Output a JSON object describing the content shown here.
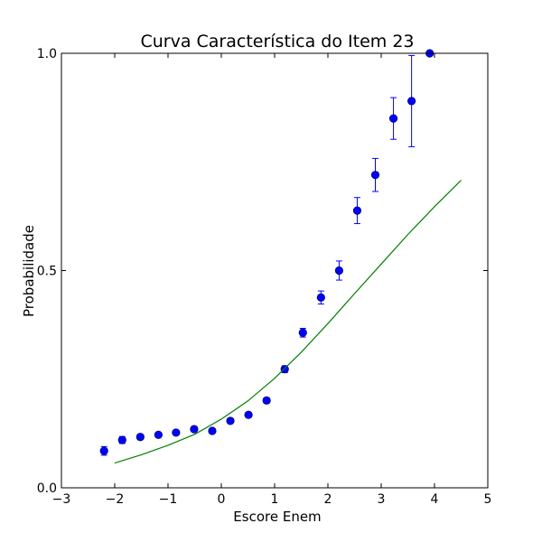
{
  "chart_data": {
    "type": "scatter",
    "title": "Curva Característica do Item 23",
    "xlabel": "Escore Enem",
    "ylabel": "Probabilidade",
    "xlim": [
      -3,
      5
    ],
    "ylim": [
      0,
      1
    ],
    "x_ticks": [
      {
        "value": -3,
        "label": "−3"
      },
      {
        "value": -2,
        "label": "−2"
      },
      {
        "value": -1,
        "label": "−1"
      },
      {
        "value": 0,
        "label": "0"
      },
      {
        "value": 1,
        "label": "1"
      },
      {
        "value": 2,
        "label": "2"
      },
      {
        "value": 3,
        "label": "3"
      },
      {
        "value": 4,
        "label": "4"
      },
      {
        "value": 5,
        "label": "5"
      }
    ],
    "y_ticks": [
      {
        "value": 0,
        "label": "0.0"
      },
      {
        "value": 0.5,
        "label": "0.5"
      },
      {
        "value": 1,
        "label": "1.0"
      }
    ],
    "grid": false,
    "series": [
      {
        "kind": "points-with-errorbars",
        "color": "#0000ff",
        "points": [
          {
            "x": -2.2,
            "y": 0.085,
            "err": 0.01
          },
          {
            "x": -1.86,
            "y": 0.11,
            "err": 0.008
          },
          {
            "x": -1.52,
            "y": 0.117,
            "err": 0.006
          },
          {
            "x": -1.18,
            "y": 0.122,
            "err": 0.005
          },
          {
            "x": -0.85,
            "y": 0.127,
            "err": 0.005
          },
          {
            "x": -0.51,
            "y": 0.135,
            "err": 0.005
          },
          {
            "x": -0.17,
            "y": 0.131,
            "err": 0.005
          },
          {
            "x": 0.17,
            "y": 0.154,
            "err": 0.005
          },
          {
            "x": 0.51,
            "y": 0.168,
            "err": 0.005
          },
          {
            "x": 0.85,
            "y": 0.201,
            "err": 0.006
          },
          {
            "x": 1.19,
            "y": 0.273,
            "err": 0.008
          },
          {
            "x": 1.53,
            "y": 0.357,
            "err": 0.01
          },
          {
            "x": 1.87,
            "y": 0.438,
            "err": 0.015
          },
          {
            "x": 2.21,
            "y": 0.5,
            "err": 0.022
          },
          {
            "x": 2.55,
            "y": 0.638,
            "err": 0.03
          },
          {
            "x": 2.89,
            "y": 0.72,
            "err": 0.038
          },
          {
            "x": 3.23,
            "y": 0.85,
            "err": 0.048
          },
          {
            "x": 3.57,
            "y": 0.89,
            "err": 0.105
          },
          {
            "x": 3.91,
            "y": 1.0,
            "err": 0.0
          }
        ]
      },
      {
        "kind": "line",
        "color": "#008000",
        "x": [
          -2.0,
          -1.5,
          -1.0,
          -0.5,
          0.0,
          0.5,
          1.0,
          1.5,
          2.0,
          2.5,
          3.0,
          3.5,
          4.0,
          4.5
        ],
        "y": [
          0.057,
          0.076,
          0.098,
          0.123,
          0.158,
          0.2,
          0.252,
          0.312,
          0.378,
          0.447,
          0.515,
          0.583,
          0.647,
          0.708
        ]
      }
    ]
  }
}
